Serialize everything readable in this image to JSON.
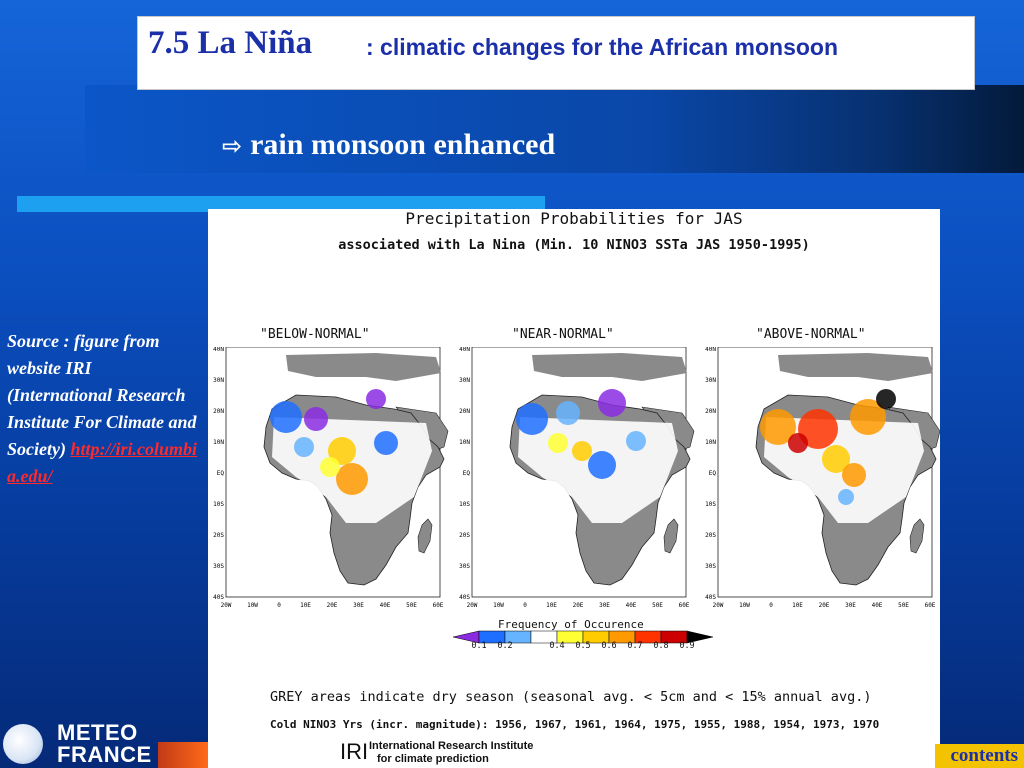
{
  "title": {
    "main": "7.5 La Niña",
    "sub": ": climatic changes for the African monsoon"
  },
  "bullet": {
    "arrow_icon": "⇨",
    "text": "rain monsoon enhanced"
  },
  "figure": {
    "title_line1": "Precipitation Probabilities for JAS",
    "title_line2": "associated with La Nina (Min. 10 NINO3 SSTa JAS 1950-1995)",
    "panels": [
      {
        "label": "\"BELOW-NORMAL\""
      },
      {
        "label": "\"NEAR-NORMAL\""
      },
      {
        "label": "\"ABOVE-NORMAL\""
      }
    ],
    "lat_labels": [
      "40N",
      "30N",
      "20N",
      "10N",
      "EQ",
      "10S",
      "20S",
      "30S",
      "40S"
    ],
    "lon_labels": [
      "20W",
      "10W",
      "0",
      "10E",
      "20E",
      "30E",
      "40E",
      "50E",
      "60E"
    ],
    "legend": {
      "title": "Frequency of Occurence",
      "ticks": [
        "0.1",
        "0.2",
        "0.4",
        "0.5",
        "0.6",
        "0.7",
        "0.8",
        "0.9"
      ],
      "colors": [
        "#8a2be2",
        "#1e6fff",
        "#66b3ff",
        "#ffffff",
        "#ffff33",
        "#ffcc00",
        "#ff9900",
        "#ff3300",
        "#cc0000",
        "#000000"
      ]
    },
    "grey_note": "GREY areas indicate dry season (seasonal avg. < 5cm and < 15% annual avg.)",
    "cold_note": "Cold NINO3 Yrs (incr. magnitude): 1956, 1967, 1961, 1964, 1975, 1955, 1988, 1954, 1973, 1970",
    "iri_logo": "IRI",
    "iri_text_line1": "International Research Institute",
    "iri_text_line2": "for climate prediction"
  },
  "source": {
    "text": "Source : figure from website IRI (International Research Institute For Climate and Society)",
    "link": "http://iri.columbia.edu/"
  },
  "footer": {
    "logo_line1": "METEO",
    "logo_line2": "FRANCE",
    "contents_label": "contents"
  }
}
